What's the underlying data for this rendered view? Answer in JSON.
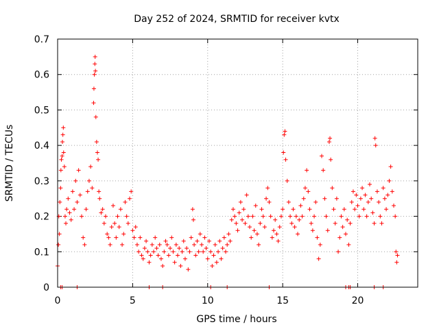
{
  "chart_data": {
    "type": "scatter",
    "title": "Day 252 of 2024, SRMTID for receiver kvtx",
    "xlabel": "GPS time / hours",
    "ylabel": "SRMTID / TECUs",
    "xlim": [
      0,
      24
    ],
    "ylim": [
      0,
      0.7
    ],
    "grid": true,
    "x_ticks": [
      0,
      5,
      10,
      15,
      20
    ],
    "x_tick_labels": [
      "0",
      "5",
      "10",
      "15",
      "20"
    ],
    "y_ticks": [
      0,
      0.1,
      0.2,
      0.3,
      0.4,
      0.5,
      0.6,
      0.7
    ],
    "y_tick_labels": [
      "0",
      "0.1",
      "0.2",
      "0.3",
      "0.4",
      "0.5",
      "0.6",
      "0.7"
    ],
    "marker": "+",
    "color": "#ff0000",
    "series": [
      {
        "name": "SRMTID",
        "points": [
          [
            0.0,
            0.06
          ],
          [
            0.05,
            0.12
          ],
          [
            0.08,
            0.2
          ],
          [
            0.12,
            0.15
          ],
          [
            0.15,
            0.24
          ],
          [
            0.2,
            0.28
          ],
          [
            0.22,
            0.33
          ],
          [
            0.25,
            0.36
          ],
          [
            0.3,
            0.37
          ],
          [
            0.32,
            0.41
          ],
          [
            0.35,
            0.43
          ],
          [
            0.38,
            0.45
          ],
          [
            0.4,
            0.38
          ],
          [
            0.45,
            0.34
          ],
          [
            0.5,
            0.2
          ],
          [
            0.55,
            0.18
          ],
          [
            0.6,
            0.22
          ],
          [
            0.7,
            0.25
          ],
          [
            0.8,
            0.21
          ],
          [
            0.9,
            0.19
          ],
          [
            1.0,
            0.27
          ],
          [
            1.1,
            0.22
          ],
          [
            1.2,
            0.3
          ],
          [
            1.3,
            0.24
          ],
          [
            1.4,
            0.33
          ],
          [
            1.5,
            0.26
          ],
          [
            1.6,
            0.2
          ],
          [
            1.7,
            0.14
          ],
          [
            1.8,
            0.12
          ],
          [
            1.9,
            0.22
          ],
          [
            2.0,
            0.27
          ],
          [
            2.1,
            0.3
          ],
          [
            2.2,
            0.34
          ],
          [
            2.3,
            0.28
          ],
          [
            2.4,
            0.52
          ],
          [
            2.42,
            0.56
          ],
          [
            2.45,
            0.6
          ],
          [
            2.48,
            0.63
          ],
          [
            2.5,
            0.65
          ],
          [
            2.52,
            0.61
          ],
          [
            2.55,
            0.48
          ],
          [
            2.6,
            0.41
          ],
          [
            2.65,
            0.38
          ],
          [
            2.7,
            0.36
          ],
          [
            2.75,
            0.27
          ],
          [
            2.8,
            0.25
          ],
          [
            2.9,
            0.21
          ],
          [
            3.0,
            0.22
          ],
          [
            3.1,
            0.18
          ],
          [
            3.2,
            0.2
          ],
          [
            3.3,
            0.15
          ],
          [
            3.4,
            0.14
          ],
          [
            3.5,
            0.12
          ],
          [
            3.6,
            0.17
          ],
          [
            3.7,
            0.23
          ],
          [
            3.8,
            0.18
          ],
          [
            3.9,
            0.14
          ],
          [
            4.0,
            0.2
          ],
          [
            4.1,
            0.17
          ],
          [
            4.2,
            0.22
          ],
          [
            4.3,
            0.12
          ],
          [
            4.4,
            0.15
          ],
          [
            4.5,
            0.24
          ],
          [
            4.6,
            0.2
          ],
          [
            4.7,
            0.18
          ],
          [
            4.8,
            0.25
          ],
          [
            4.9,
            0.27
          ],
          [
            5.0,
            0.16
          ],
          [
            5.1,
            0.14
          ],
          [
            5.2,
            0.17
          ],
          [
            5.3,
            0.12
          ],
          [
            5.4,
            0.1
          ],
          [
            5.5,
            0.14
          ],
          [
            5.6,
            0.09
          ],
          [
            5.7,
            0.08
          ],
          [
            5.8,
            0.11
          ],
          [
            5.9,
            0.13
          ],
          [
            6.0,
            0.1
          ],
          [
            6.1,
            0.07
          ],
          [
            6.2,
            0.09
          ],
          [
            6.3,
            0.12
          ],
          [
            6.4,
            0.1
          ],
          [
            6.5,
            0.14
          ],
          [
            6.6,
            0.11
          ],
          [
            6.7,
            0.09
          ],
          [
            6.8,
            0.12
          ],
          [
            6.9,
            0.08
          ],
          [
            7.0,
            0.06
          ],
          [
            7.1,
            0.1
          ],
          [
            7.2,
            0.13
          ],
          [
            7.3,
            0.12
          ],
          [
            7.4,
            0.09
          ],
          [
            7.5,
            0.11
          ],
          [
            7.6,
            0.14
          ],
          [
            7.7,
            0.1
          ],
          [
            7.8,
            0.07
          ],
          [
            7.9,
            0.12
          ],
          [
            8.0,
            0.09
          ],
          [
            8.1,
            0.11
          ],
          [
            8.2,
            0.06
          ],
          [
            8.3,
            0.1
          ],
          [
            8.4,
            0.13
          ],
          [
            8.5,
            0.08
          ],
          [
            8.6,
            0.11
          ],
          [
            8.7,
            0.05
          ],
          [
            8.8,
            0.1
          ],
          [
            8.9,
            0.14
          ],
          [
            9.0,
            0.22
          ],
          [
            9.05,
            0.19
          ],
          [
            9.1,
            0.12
          ],
          [
            9.2,
            0.09
          ],
          [
            9.3,
            0.13
          ],
          [
            9.4,
            0.1
          ],
          [
            9.5,
            0.15
          ],
          [
            9.6,
            0.12
          ],
          [
            9.7,
            0.1
          ],
          [
            9.8,
            0.14
          ],
          [
            9.9,
            0.11
          ],
          [
            10.0,
            0.08
          ],
          [
            10.1,
            0.13
          ],
          [
            10.2,
            0.1
          ],
          [
            10.3,
            0.06
          ],
          [
            10.4,
            0.09
          ],
          [
            10.5,
            0.12
          ],
          [
            10.6,
            0.07
          ],
          [
            10.7,
            0.1
          ],
          [
            10.8,
            0.13
          ],
          [
            10.9,
            0.08
          ],
          [
            11.0,
            0.11
          ],
          [
            11.1,
            0.14
          ],
          [
            11.2,
            0.1
          ],
          [
            11.3,
            0.12
          ],
          [
            11.4,
            0.15
          ],
          [
            11.5,
            0.13
          ],
          [
            11.6,
            0.19
          ],
          [
            11.7,
            0.22
          ],
          [
            11.8,
            0.2
          ],
          [
            11.9,
            0.18
          ],
          [
            12.0,
            0.16
          ],
          [
            12.1,
            0.21
          ],
          [
            12.2,
            0.24
          ],
          [
            12.3,
            0.19
          ],
          [
            12.4,
            0.22
          ],
          [
            12.5,
            0.18
          ],
          [
            12.6,
            0.26
          ],
          [
            12.7,
            0.2
          ],
          [
            12.8,
            0.17
          ],
          [
            12.9,
            0.14
          ],
          [
            13.0,
            0.2
          ],
          [
            13.1,
            0.16
          ],
          [
            13.2,
            0.23
          ],
          [
            13.3,
            0.15
          ],
          [
            13.4,
            0.12
          ],
          [
            13.5,
            0.18
          ],
          [
            13.6,
            0.22
          ],
          [
            13.7,
            0.2
          ],
          [
            13.8,
            0.17
          ],
          [
            13.9,
            0.25
          ],
          [
            14.0,
            0.28
          ],
          [
            14.1,
            0.24
          ],
          [
            14.2,
            0.2
          ],
          [
            14.3,
            0.14
          ],
          [
            14.4,
            0.16
          ],
          [
            14.5,
            0.19
          ],
          [
            14.6,
            0.15
          ],
          [
            14.7,
            0.13
          ],
          [
            14.8,
            0.17
          ],
          [
            14.9,
            0.2
          ],
          [
            15.0,
            0.22
          ],
          [
            15.05,
            0.38
          ],
          [
            15.1,
            0.43
          ],
          [
            15.15,
            0.44
          ],
          [
            15.2,
            0.36
          ],
          [
            15.3,
            0.3
          ],
          [
            15.4,
            0.24
          ],
          [
            15.5,
            0.2
          ],
          [
            15.6,
            0.18
          ],
          [
            15.7,
            0.22
          ],
          [
            15.8,
            0.17
          ],
          [
            15.9,
            0.2
          ],
          [
            16.0,
            0.15
          ],
          [
            16.1,
            0.19
          ],
          [
            16.2,
            0.23
          ],
          [
            16.3,
            0.2
          ],
          [
            16.4,
            0.25
          ],
          [
            16.5,
            0.28
          ],
          [
            16.6,
            0.33
          ],
          [
            16.7,
            0.27
          ],
          [
            16.8,
            0.22
          ],
          [
            16.9,
            0.18
          ],
          [
            17.0,
            0.16
          ],
          [
            17.1,
            0.2
          ],
          [
            17.2,
            0.24
          ],
          [
            17.3,
            0.14
          ],
          [
            17.4,
            0.08
          ],
          [
            17.5,
            0.12
          ],
          [
            17.6,
            0.37
          ],
          [
            17.7,
            0.33
          ],
          [
            17.8,
            0.25
          ],
          [
            17.9,
            0.2
          ],
          [
            18.0,
            0.16
          ],
          [
            18.1,
            0.41
          ],
          [
            18.15,
            0.42
          ],
          [
            18.2,
            0.36
          ],
          [
            18.3,
            0.28
          ],
          [
            18.4,
            0.22
          ],
          [
            18.5,
            0.18
          ],
          [
            18.6,
            0.25
          ],
          [
            18.7,
            0.1
          ],
          [
            18.8,
            0.14
          ],
          [
            18.9,
            0.2
          ],
          [
            19.0,
            0.17
          ],
          [
            19.1,
            0.22
          ],
          [
            19.2,
            0.15
          ],
          [
            19.3,
            0.19
          ],
          [
            19.4,
            0.12
          ],
          [
            19.5,
            0.18
          ],
          [
            19.6,
            0.24
          ],
          [
            19.7,
            0.27
          ],
          [
            19.8,
            0.22
          ],
          [
            19.9,
            0.26
          ],
          [
            20.0,
            0.23
          ],
          [
            20.1,
            0.2
          ],
          [
            20.2,
            0.25
          ],
          [
            20.3,
            0.28
          ],
          [
            20.4,
            0.22
          ],
          [
            20.5,
            0.26
          ],
          [
            20.6,
            0.2
          ],
          [
            20.7,
            0.24
          ],
          [
            20.8,
            0.29
          ],
          [
            20.9,
            0.25
          ],
          [
            21.0,
            0.21
          ],
          [
            21.1,
            0.18
          ],
          [
            21.15,
            0.42
          ],
          [
            21.2,
            0.4
          ],
          [
            21.3,
            0.27
          ],
          [
            21.4,
            0.24
          ],
          [
            21.5,
            0.2
          ],
          [
            21.6,
            0.18
          ],
          [
            21.7,
            0.28
          ],
          [
            21.8,
            0.25
          ],
          [
            21.9,
            0.22
          ],
          [
            22.0,
            0.26
          ],
          [
            22.1,
            0.3
          ],
          [
            22.2,
            0.34
          ],
          [
            22.3,
            0.27
          ],
          [
            22.4,
            0.23
          ],
          [
            22.5,
            0.2
          ],
          [
            22.55,
            0.1
          ],
          [
            22.6,
            0.07
          ],
          [
            22.65,
            0.09
          ]
        ]
      }
    ],
    "baseline_points_x": [
      0.2,
      0.3,
      1.3,
      6.1,
      7.0,
      10.2,
      11.3,
      14.1,
      19.2,
      19.4,
      19.5,
      21.1,
      21.7
    ]
  }
}
